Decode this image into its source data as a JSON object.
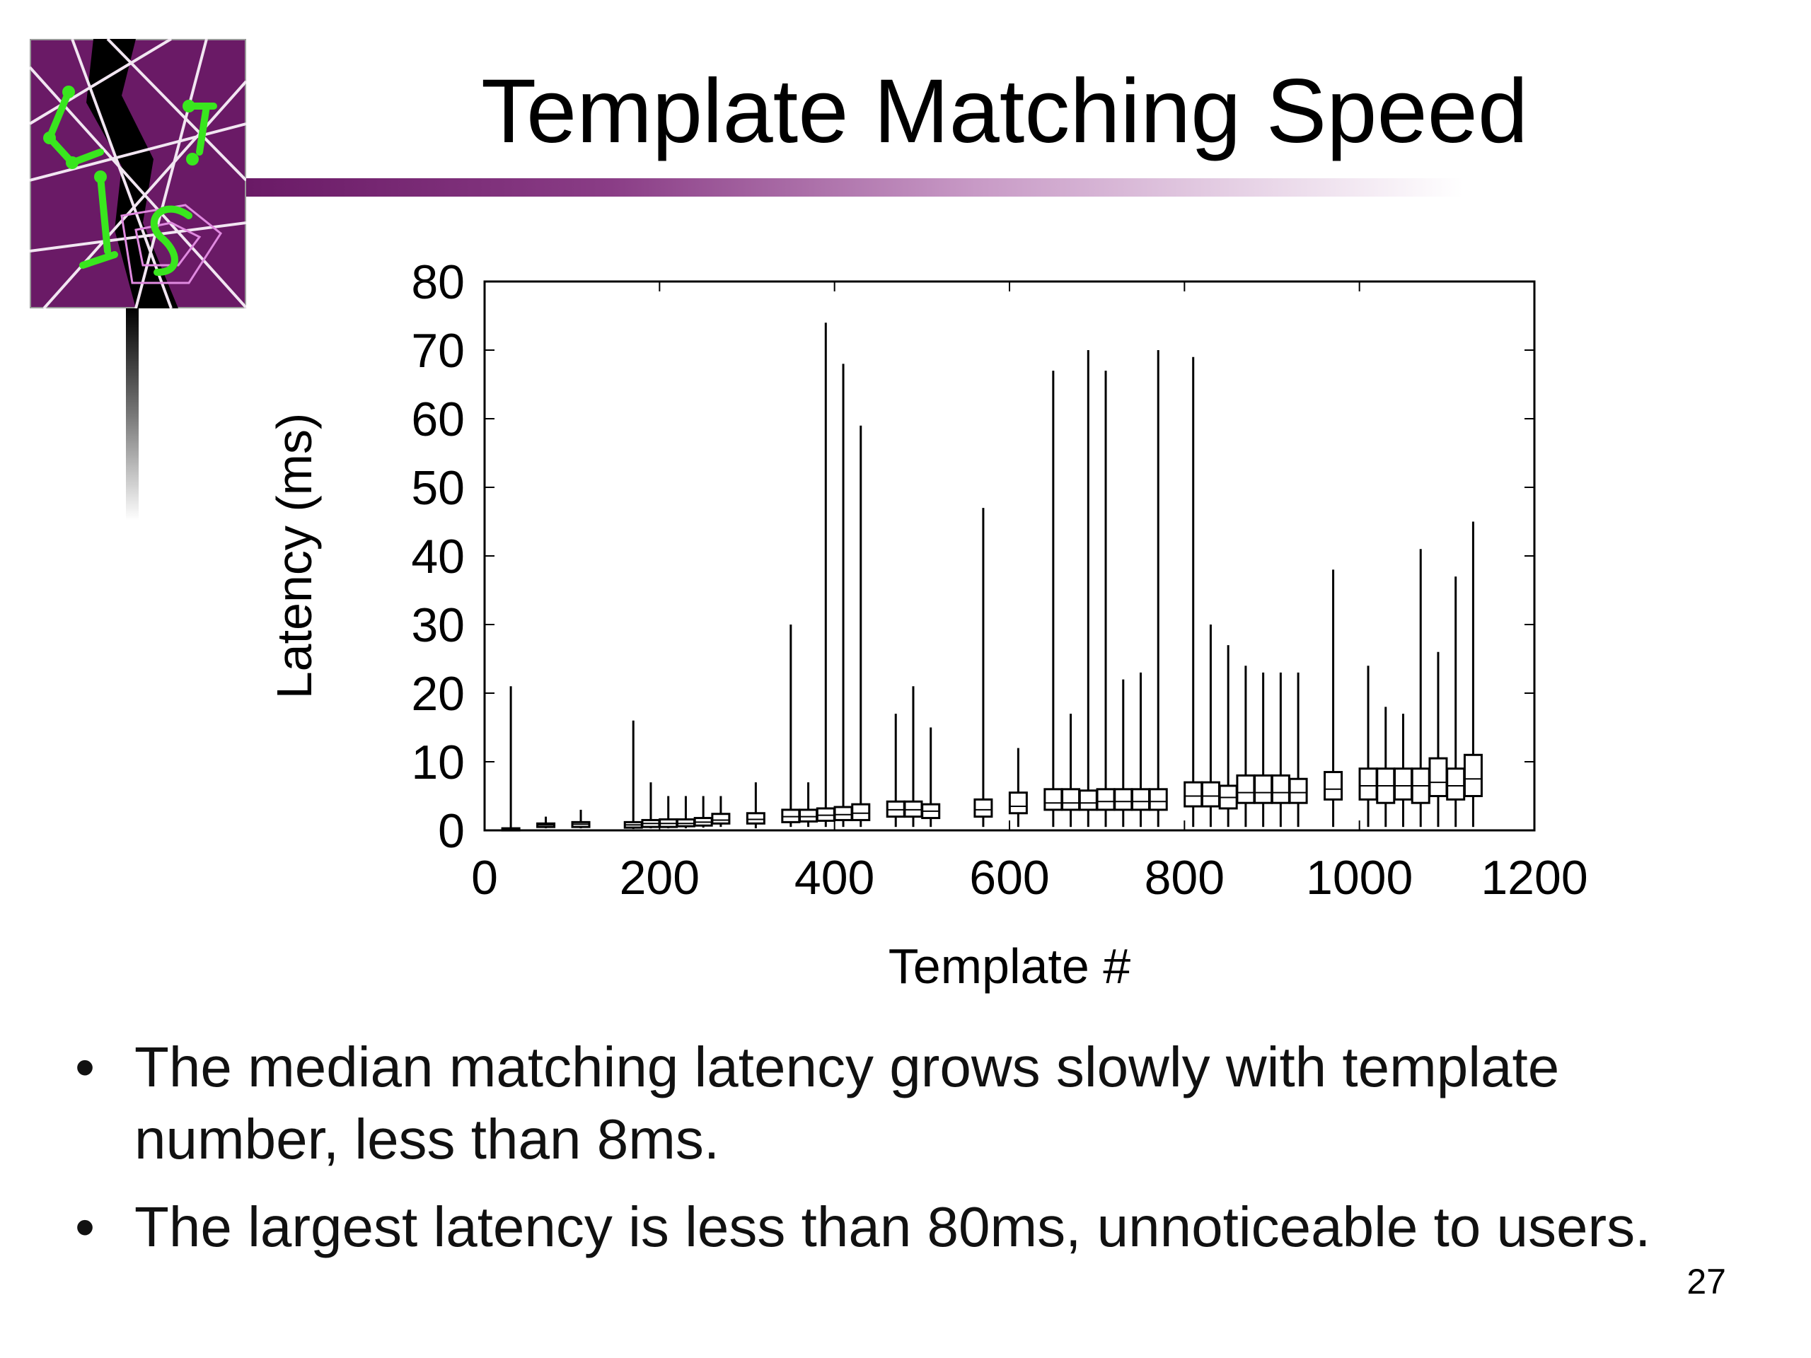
{
  "slide": {
    "title": "Template Matching Speed",
    "page_number": "27",
    "bullets": [
      "The median matching latency grows slowly with template number, less than 8ms.",
      "The largest latency is less than 80ms, unnoticeable to users."
    ],
    "bullet_glyph": "•",
    "logo_icon": "spiderweb-logo-icon",
    "colors": {
      "brand_purple": "#6a1a66",
      "logo_green": "#39e61e"
    }
  },
  "chart_data": {
    "type": "boxplot",
    "title": "",
    "xlabel": "Template #",
    "ylabel": "Latency (ms)",
    "xlim": [
      0,
      1200
    ],
    "ylim": [
      0,
      80
    ],
    "xticks": [
      "0",
      "200",
      "400",
      "600",
      "800",
      "1000",
      "1200"
    ],
    "yticks": [
      "0",
      "10",
      "20",
      "30",
      "40",
      "50",
      "60",
      "70",
      "80"
    ],
    "grid": false,
    "legend": "none",
    "boxes": [
      {
        "x": 30,
        "min": 0,
        "q1": 0.1,
        "median": 0.2,
        "q3": 0.3,
        "max": 21
      },
      {
        "x": 70,
        "min": 0.3,
        "q1": 0.5,
        "median": 0.8,
        "q3": 1,
        "max": 2
      },
      {
        "x": 110,
        "min": 0.3,
        "q1": 0.5,
        "median": 0.9,
        "q3": 1.2,
        "max": 3
      },
      {
        "x": 170,
        "min": 0.2,
        "q1": 0.4,
        "median": 0.8,
        "q3": 1.2,
        "max": 16
      },
      {
        "x": 190,
        "min": 0.3,
        "q1": 0.5,
        "median": 1,
        "q3": 1.5,
        "max": 7
      },
      {
        "x": 210,
        "min": 0.3,
        "q1": 0.5,
        "median": 1,
        "q3": 1.6,
        "max": 5
      },
      {
        "x": 230,
        "min": 0.3,
        "q1": 0.6,
        "median": 1,
        "q3": 1.6,
        "max": 5
      },
      {
        "x": 250,
        "min": 0.4,
        "q1": 0.7,
        "median": 1.2,
        "q3": 1.8,
        "max": 5
      },
      {
        "x": 270,
        "min": 0.5,
        "q1": 1,
        "median": 1.5,
        "q3": 2.4,
        "max": 5
      },
      {
        "x": 310,
        "min": 0.3,
        "q1": 1,
        "median": 1.6,
        "q3": 2.5,
        "max": 7
      },
      {
        "x": 350,
        "min": 0.5,
        "q1": 1.2,
        "median": 2,
        "q3": 3,
        "max": 30
      },
      {
        "x": 370,
        "min": 0.5,
        "q1": 1.3,
        "median": 2,
        "q3": 3,
        "max": 7
      },
      {
        "x": 390,
        "min": 0.5,
        "q1": 1.4,
        "median": 2.2,
        "q3": 3.2,
        "max": 74
      },
      {
        "x": 410,
        "min": 0.5,
        "q1": 1.5,
        "median": 2.3,
        "q3": 3.4,
        "max": 68
      },
      {
        "x": 430,
        "min": 0.5,
        "q1": 1.5,
        "median": 2.5,
        "q3": 3.8,
        "max": 59
      },
      {
        "x": 470,
        "min": 0.5,
        "q1": 2,
        "median": 3,
        "q3": 4.2,
        "max": 17
      },
      {
        "x": 490,
        "min": 0.5,
        "q1": 2,
        "median": 3,
        "q3": 4.2,
        "max": 21
      },
      {
        "x": 510,
        "min": 0.5,
        "q1": 1.8,
        "median": 2.8,
        "q3": 3.8,
        "max": 15
      },
      {
        "x": 570,
        "min": 0.5,
        "q1": 2,
        "median": 3,
        "q3": 4.5,
        "max": 47
      },
      {
        "x": 610,
        "min": 0.5,
        "q1": 2.5,
        "median": 3.5,
        "q3": 5.5,
        "max": 12
      },
      {
        "x": 650,
        "min": 0.5,
        "q1": 3,
        "median": 4,
        "q3": 6,
        "max": 67
      },
      {
        "x": 670,
        "min": 0.5,
        "q1": 3,
        "median": 4,
        "q3": 6,
        "max": 17
      },
      {
        "x": 690,
        "min": 0.5,
        "q1": 3,
        "median": 4,
        "q3": 5.8,
        "max": 70
      },
      {
        "x": 710,
        "min": 0.5,
        "q1": 3,
        "median": 4.2,
        "q3": 6,
        "max": 67
      },
      {
        "x": 730,
        "min": 0.5,
        "q1": 3,
        "median": 4.2,
        "q3": 6,
        "max": 22
      },
      {
        "x": 750,
        "min": 0.5,
        "q1": 3,
        "median": 4.2,
        "q3": 6,
        "max": 23
      },
      {
        "x": 770,
        "min": 0.5,
        "q1": 3,
        "median": 4.2,
        "q3": 6,
        "max": 70
      },
      {
        "x": 810,
        "min": 0.5,
        "q1": 3.5,
        "median": 5,
        "q3": 7,
        "max": 69
      },
      {
        "x": 830,
        "min": 0.5,
        "q1": 3.5,
        "median": 5,
        "q3": 7,
        "max": 30
      },
      {
        "x": 850,
        "min": 0.5,
        "q1": 3.2,
        "median": 4.8,
        "q3": 6.5,
        "max": 27
      },
      {
        "x": 870,
        "min": 0.5,
        "q1": 4,
        "median": 5.5,
        "q3": 8,
        "max": 24
      },
      {
        "x": 890,
        "min": 0.5,
        "q1": 4,
        "median": 5.5,
        "q3": 8,
        "max": 23
      },
      {
        "x": 910,
        "min": 0.5,
        "q1": 4,
        "median": 5.5,
        "q3": 8,
        "max": 23
      },
      {
        "x": 930,
        "min": 0.5,
        "q1": 4,
        "median": 5.5,
        "q3": 7.5,
        "max": 23
      },
      {
        "x": 970,
        "min": 0.5,
        "q1": 4.5,
        "median": 6,
        "q3": 8.5,
        "max": 38
      },
      {
        "x": 1010,
        "min": 0.5,
        "q1": 4.5,
        "median": 6.5,
        "q3": 9,
        "max": 24
      },
      {
        "x": 1030,
        "min": 0.5,
        "q1": 4,
        "median": 6.5,
        "q3": 9,
        "max": 18
      },
      {
        "x": 1050,
        "min": 0.5,
        "q1": 4.5,
        "median": 6.5,
        "q3": 9,
        "max": 17
      },
      {
        "x": 1070,
        "min": 0.5,
        "q1": 4,
        "median": 6.5,
        "q3": 9,
        "max": 41
      },
      {
        "x": 1090,
        "min": 0.5,
        "q1": 5,
        "median": 7,
        "q3": 10.5,
        "max": 26
      },
      {
        "x": 1110,
        "min": 0.5,
        "q1": 4.5,
        "median": 6.5,
        "q3": 9,
        "max": 37
      },
      {
        "x": 1130,
        "min": 0.5,
        "q1": 5,
        "median": 7.5,
        "q3": 11,
        "max": 45
      }
    ]
  }
}
